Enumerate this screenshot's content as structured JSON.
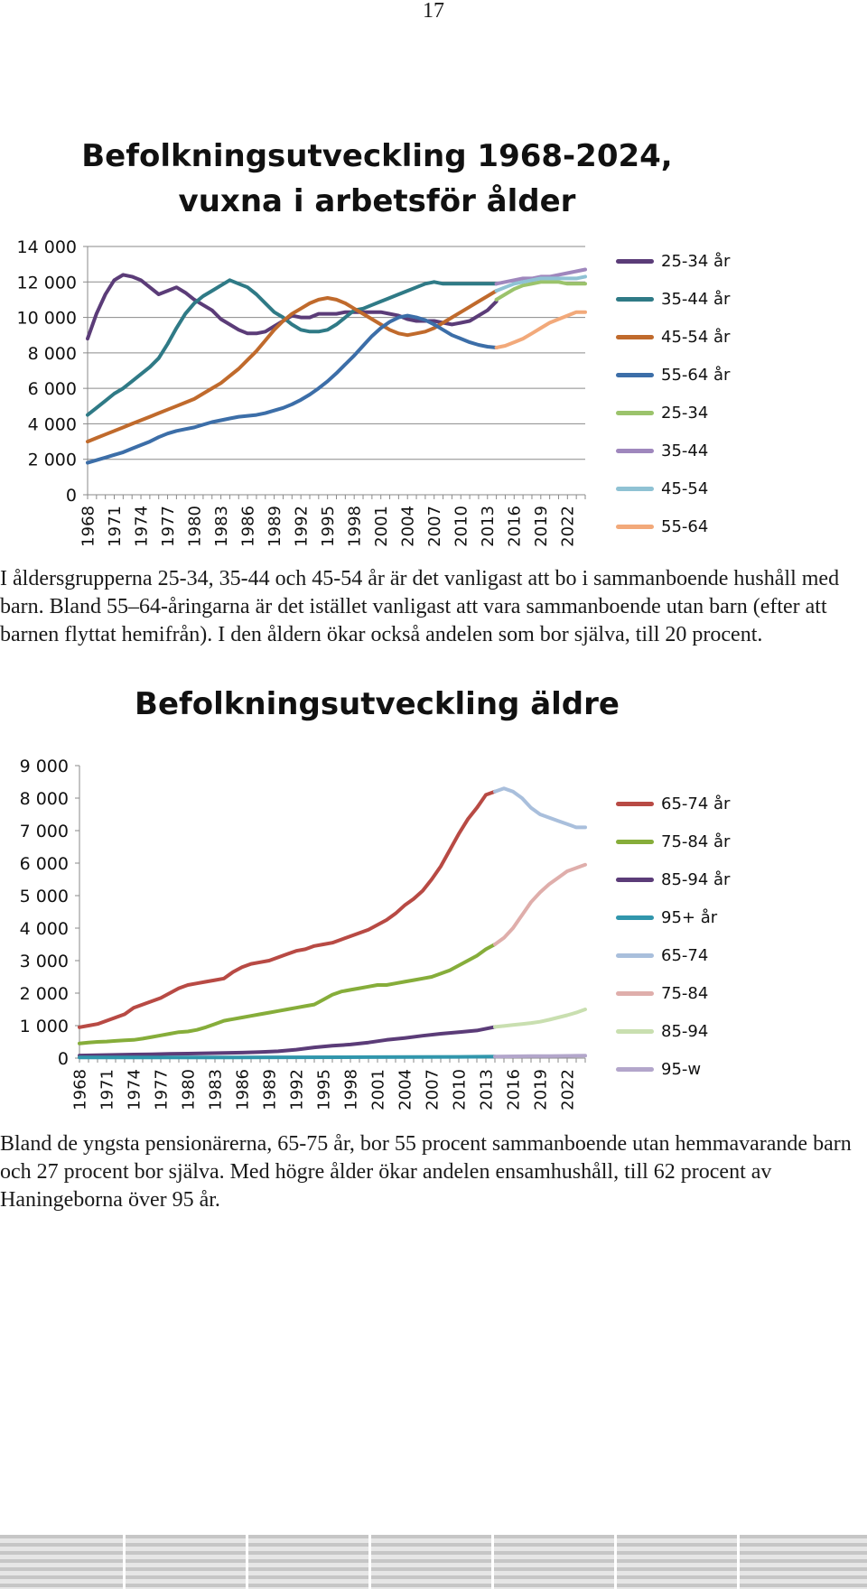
{
  "page_number": "17",
  "paragraphs": {
    "p1": "I åldersgrupperna 25-34, 35-44 och 45-54 år är det vanligast att bo i sammanboende hushåll med barn. Bland 55–64-åringarna är det istället vanligast att vara sammanboende utan barn (efter att barnen flyttat hemifrån). I den åldern ökar också andelen som bor själva, till 20 procent.",
    "p2": "Bland de yngsta pensionärerna, 65-75 år, bor 55 procent sammanboende utan hemmavarande barn och 27 procent bor själva. Med högre ålder ökar andelen ensamhushåll, till 62 procent av Haningeborna över 95 år."
  },
  "chart_data": [
    {
      "type": "line",
      "title": "Befolkningsutveckling 1968-2024, vuxna i arbetsför ålder",
      "title_lines": [
        "Befolkningsutveckling 1968-2024,",
        "vuxna i arbetsför ålder"
      ],
      "xlabel": "",
      "ylabel": "",
      "x_range": [
        1968,
        2024
      ],
      "x_tick_labels": [
        "1968",
        "1971",
        "1974",
        "1977",
        "1980",
        "1983",
        "1986",
        "1989",
        "1992",
        "1995",
        "1998",
        "2001",
        "2004",
        "2007",
        "2010",
        "2013",
        "2016",
        "2019",
        "2022"
      ],
      "ylim": [
        0,
        14000
      ],
      "y_tick_labels": [
        "0",
        "2 000",
        "4 000",
        "6 000",
        "8 000",
        "10 000",
        "12 000",
        "14 000"
      ],
      "grid": true,
      "legend_position": "right",
      "series": [
        {
          "name": "25-34 år",
          "color": "#5b3c78",
          "x": [
            1968,
            1969,
            1970,
            1971,
            1972,
            1973,
            1974,
            1975,
            1976,
            1977,
            1978,
            1979,
            1980,
            1981,
            1982,
            1983,
            1984,
            1985,
            1986,
            1987,
            1988,
            1989,
            1990,
            1991,
            1992,
            1993,
            1994,
            1995,
            1996,
            1997,
            1998,
            1999,
            2000,
            2001,
            2002,
            2003,
            2004,
            2005,
            2006,
            2007,
            2008,
            2009,
            2010,
            2011,
            2012,
            2013,
            2014
          ],
          "y": [
            8800,
            10200,
            11300,
            12100,
            12400,
            12300,
            12100,
            11700,
            11300,
            11500,
            11700,
            11400,
            11000,
            10700,
            10400,
            9900,
            9600,
            9300,
            9100,
            9100,
            9200,
            9500,
            9800,
            10100,
            10000,
            10000,
            10200,
            10200,
            10200,
            10300,
            10300,
            10300,
            10300,
            10300,
            10200,
            10100,
            9900,
            9800,
            9800,
            9800,
            9700,
            9600,
            9700,
            9800,
            10100,
            10400,
            10900
          ]
        },
        {
          "name": "35-44 år",
          "color": "#2f7a86",
          "x": [
            1968,
            1969,
            1970,
            1971,
            1972,
            1973,
            1974,
            1975,
            1976,
            1977,
            1978,
            1979,
            1980,
            1981,
            1982,
            1983,
            1984,
            1985,
            1986,
            1987,
            1988,
            1989,
            1990,
            1991,
            1992,
            1993,
            1994,
            1995,
            1996,
            1997,
            1998,
            1999,
            2000,
            2001,
            2002,
            2003,
            2004,
            2005,
            2006,
            2007,
            2008,
            2009,
            2010,
            2011,
            2012,
            2013,
            2014
          ],
          "y": [
            4500,
            4900,
            5300,
            5700,
            6000,
            6400,
            6800,
            7200,
            7700,
            8500,
            9400,
            10200,
            10800,
            11200,
            11500,
            11800,
            12100,
            11900,
            11700,
            11300,
            10800,
            10300,
            10000,
            9600,
            9300,
            9200,
            9200,
            9300,
            9600,
            10000,
            10400,
            10500,
            10700,
            10900,
            11100,
            11300,
            11500,
            11700,
            11900,
            12000,
            11900,
            11900,
            11900,
            11900,
            11900,
            11900,
            11900
          ]
        },
        {
          "name": "45-54 år",
          "color": "#c06a2c",
          "x": [
            1968,
            1969,
            1970,
            1971,
            1972,
            1973,
            1974,
            1975,
            1976,
            1977,
            1978,
            1979,
            1980,
            1981,
            1982,
            1983,
            1984,
            1985,
            1986,
            1987,
            1988,
            1989,
            1990,
            1991,
            1992,
            1993,
            1994,
            1995,
            1996,
            1997,
            1998,
            1999,
            2000,
            2001,
            2002,
            2003,
            2004,
            2005,
            2006,
            2007,
            2008,
            2009,
            2010,
            2011,
            2012,
            2013,
            2014
          ],
          "y": [
            3000,
            3200,
            3400,
            3600,
            3800,
            4000,
            4200,
            4400,
            4600,
            4800,
            5000,
            5200,
            5400,
            5700,
            6000,
            6300,
            6700,
            7100,
            7600,
            8100,
            8700,
            9300,
            9800,
            10200,
            10500,
            10800,
            11000,
            11100,
            11000,
            10800,
            10500,
            10200,
            9900,
            9600,
            9300,
            9100,
            9000,
            9100,
            9200,
            9400,
            9700,
            10000,
            10300,
            10600,
            10900,
            11200,
            11500
          ]
        },
        {
          "name": "55-64 år",
          "color": "#3c6ea8",
          "x": [
            1968,
            1969,
            1970,
            1971,
            1972,
            1973,
            1974,
            1975,
            1976,
            1977,
            1978,
            1979,
            1980,
            1981,
            1982,
            1983,
            1984,
            1985,
            1986,
            1987,
            1988,
            1989,
            1990,
            1991,
            1992,
            1993,
            1994,
            1995,
            1996,
            1997,
            1998,
            1999,
            2000,
            2001,
            2002,
            2003,
            2004,
            2005,
            2006,
            2007,
            2008,
            2009,
            2010,
            2011,
            2012,
            2013,
            2014
          ],
          "y": [
            1800,
            1950,
            2100,
            2250,
            2400,
            2600,
            2800,
            3000,
            3250,
            3450,
            3600,
            3700,
            3800,
            3950,
            4100,
            4200,
            4300,
            4400,
            4450,
            4500,
            4600,
            4750,
            4900,
            5100,
            5350,
            5650,
            6000,
            6400,
            6850,
            7350,
            7850,
            8400,
            8950,
            9400,
            9750,
            10000,
            10100,
            10000,
            9850,
            9600,
            9300,
            9000,
            8800,
            8600,
            8450,
            8350,
            8300
          ]
        },
        {
          "name": "25-34",
          "color": "#9bc36b",
          "x": [
            2014,
            2015,
            2016,
            2017,
            2018,
            2019,
            2020,
            2021,
            2022,
            2023,
            2024
          ],
          "y": [
            11000,
            11300,
            11600,
            11800,
            11900,
            12000,
            12000,
            12000,
            11900,
            11900,
            11900
          ]
        },
        {
          "name": "35-44",
          "color": "#9f87bd",
          "x": [
            2014,
            2015,
            2016,
            2017,
            2018,
            2019,
            2020,
            2021,
            2022,
            2023,
            2024
          ],
          "y": [
            11900,
            12000,
            12100,
            12200,
            12200,
            12300,
            12300,
            12400,
            12500,
            12600,
            12700
          ]
        },
        {
          "name": "45-54",
          "color": "#8fc2d4",
          "x": [
            2014,
            2015,
            2016,
            2017,
            2018,
            2019,
            2020,
            2021,
            2022,
            2023,
            2024
          ],
          "y": [
            11500,
            11700,
            11900,
            12000,
            12100,
            12200,
            12200,
            12200,
            12200,
            12200,
            12300
          ]
        },
        {
          "name": "55-64",
          "color": "#f2a97a",
          "x": [
            2014,
            2015,
            2016,
            2017,
            2018,
            2019,
            2020,
            2021,
            2022,
            2023,
            2024
          ],
          "y": [
            8300,
            8400,
            8600,
            8800,
            9100,
            9400,
            9700,
            9900,
            10100,
            10300,
            10300
          ]
        }
      ]
    },
    {
      "type": "line",
      "title": "Befolkningsutveckling äldre",
      "title_lines": [
        "Befolkningsutveckling äldre"
      ],
      "xlabel": "",
      "ylabel": "",
      "x_range": [
        1968,
        2024
      ],
      "x_tick_labels": [
        "1968",
        "1971",
        "1974",
        "1977",
        "1980",
        "1983",
        "1986",
        "1989",
        "1992",
        "1995",
        "1998",
        "2001",
        "2004",
        "2007",
        "2010",
        "2013",
        "2016",
        "2019",
        "2022"
      ],
      "ylim": [
        0,
        9000
      ],
      "y_tick_labels": [
        "0",
        "1 000",
        "2 000",
        "3 000",
        "4 000",
        "5 000",
        "6 000",
        "7 000",
        "8 000",
        "9 000"
      ],
      "grid": false,
      "legend_position": "right",
      "series": [
        {
          "name": "65-74 år",
          "color": "#b84a44",
          "x": [
            1968,
            1969,
            1970,
            1971,
            1972,
            1973,
            1974,
            1975,
            1976,
            1977,
            1978,
            1979,
            1980,
            1981,
            1982,
            1983,
            1984,
            1985,
            1986,
            1987,
            1988,
            1989,
            1990,
            1991,
            1992,
            1993,
            1994,
            1995,
            1996,
            1997,
            1998,
            1999,
            2000,
            2001,
            2002,
            2003,
            2004,
            2005,
            2006,
            2007,
            2008,
            2009,
            2010,
            2011,
            2012,
            2013,
            2014
          ],
          "y": [
            950,
            1000,
            1050,
            1150,
            1250,
            1350,
            1550,
            1650,
            1750,
            1850,
            2000,
            2150,
            2250,
            2300,
            2350,
            2400,
            2450,
            2650,
            2800,
            2900,
            2950,
            3000,
            3100,
            3200,
            3300,
            3350,
            3450,
            3500,
            3550,
            3650,
            3750,
            3850,
            3950,
            4100,
            4250,
            4450,
            4700,
            4900,
            5150,
            5500,
            5900,
            6400,
            6900,
            7350,
            7700,
            8100,
            8200
          ]
        },
        {
          "name": "75-84 år",
          "color": "#86ad3a",
          "x": [
            1968,
            1969,
            1970,
            1971,
            1972,
            1973,
            1974,
            1975,
            1976,
            1977,
            1978,
            1979,
            1980,
            1981,
            1982,
            1983,
            1984,
            1985,
            1986,
            1987,
            1988,
            1989,
            1990,
            1991,
            1992,
            1993,
            1994,
            1995,
            1996,
            1997,
            1998,
            1999,
            2000,
            2001,
            2002,
            2003,
            2004,
            2005,
            2006,
            2007,
            2008,
            2009,
            2010,
            2011,
            2012,
            2013,
            2014
          ],
          "y": [
            450,
            480,
            500,
            510,
            530,
            550,
            560,
            600,
            650,
            700,
            750,
            800,
            820,
            870,
            950,
            1050,
            1150,
            1200,
            1250,
            1300,
            1350,
            1400,
            1450,
            1500,
            1550,
            1600,
            1650,
            1800,
            1950,
            2050,
            2100,
            2150,
            2200,
            2250,
            2250,
            2300,
            2350,
            2400,
            2450,
            2500,
            2600,
            2700,
            2850,
            3000,
            3150,
            3350,
            3500
          ]
        },
        {
          "name": "85-94 år",
          "color": "#5b3c78",
          "x": [
            1968,
            1970,
            1972,
            1974,
            1976,
            1978,
            1980,
            1982,
            1984,
            1986,
            1988,
            1990,
            1992,
            1994,
            1996,
            1998,
            2000,
            2002,
            2004,
            2006,
            2008,
            2010,
            2012,
            2014
          ],
          "y": [
            80,
            90,
            100,
            110,
            120,
            130,
            140,
            150,
            160,
            170,
            190,
            210,
            260,
            330,
            380,
            420,
            480,
            560,
            620,
            690,
            750,
            800,
            850,
            960
          ]
        },
        {
          "name": "95+ år",
          "color": "#3196ac",
          "x": [
            1968,
            1980,
            1990,
            2000,
            2010,
            2014
          ],
          "y": [
            20,
            20,
            25,
            30,
            40,
            50
          ]
        },
        {
          "name": "65-74",
          "color": "#a9bfdc",
          "x": [
            2014,
            2015,
            2016,
            2017,
            2018,
            2019,
            2020,
            2021,
            2022,
            2023,
            2024
          ],
          "y": [
            8200,
            8300,
            8200,
            8000,
            7700,
            7500,
            7400,
            7300,
            7200,
            7100,
            7100
          ]
        },
        {
          "name": "75-84",
          "color": "#dfaeab",
          "x": [
            2014,
            2015,
            2016,
            2017,
            2018,
            2019,
            2020,
            2021,
            2022,
            2023,
            2024
          ],
          "y": [
            3500,
            3700,
            4000,
            4400,
            4800,
            5100,
            5350,
            5550,
            5750,
            5850,
            5950
          ]
        },
        {
          "name": "85-94",
          "color": "#c9dfb0",
          "x": [
            2014,
            2015,
            2016,
            2017,
            2018,
            2019,
            2020,
            2021,
            2022,
            2023,
            2024
          ],
          "y": [
            960,
            990,
            1020,
            1050,
            1080,
            1120,
            1180,
            1250,
            1320,
            1400,
            1500
          ]
        },
        {
          "name": "95-w",
          "color": "#b3a6cb",
          "x": [
            2014,
            2016,
            2018,
            2020,
            2022,
            2024
          ],
          "y": [
            50,
            55,
            60,
            65,
            70,
            75
          ]
        }
      ]
    }
  ]
}
